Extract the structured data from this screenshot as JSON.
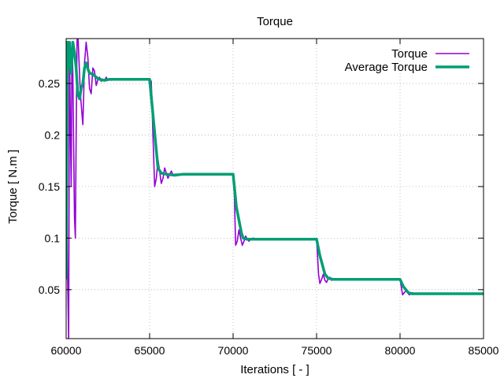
{
  "chart_data": {
    "type": "line",
    "title": "Torque",
    "xlabel": "Iterations [ - ]",
    "ylabel": "Torque [ N.m ]",
    "xlim": [
      60000,
      85000
    ],
    "ylim": [
      0.0025,
      0.2935
    ],
    "xticks": [
      60000,
      65000,
      70000,
      75000,
      80000,
      85000
    ],
    "yticks": [
      0.05,
      0.1,
      0.15,
      0.2,
      0.25
    ],
    "ytick_labels": [
      "0.05",
      "0.1",
      "0.15",
      "0.2",
      "0.25"
    ],
    "grid": true,
    "legend_position": "top-right",
    "series": [
      {
        "name": "Torque",
        "color": "#9400d3",
        "x": [
          60000,
          60080,
          60150,
          60200,
          60260,
          60300,
          60350,
          60400,
          60450,
          60500,
          60550,
          60600,
          60650,
          60700,
          60750,
          60800,
          60850,
          60900,
          60950,
          61000,
          61050,
          61100,
          61150,
          61200,
          61300,
          61400,
          61500,
          61600,
          61700,
          61800,
          61900,
          62000,
          62100,
          62200,
          62300,
          62400,
          62500,
          62600,
          62700,
          62800,
          63000,
          63500,
          64000,
          64500,
          65000,
          65100,
          65200,
          65300,
          65400,
          65500,
          65600,
          65700,
          65800,
          65900,
          66000,
          66100,
          66200,
          66300,
          66400,
          66500,
          66700,
          67000,
          68000,
          69000,
          70000,
          70080,
          70150,
          70250,
          70350,
          70450,
          70550,
          70650,
          70750,
          70850,
          70950,
          71050,
          71200,
          71400,
          72000,
          73000,
          74000,
          75000,
          75050,
          75120,
          75200,
          75300,
          75400,
          75500,
          75600,
          75700,
          75800,
          75900,
          76000,
          76200,
          77000,
          78000,
          79000,
          80000,
          80050,
          80150,
          80250,
          80350,
          80450,
          80550,
          80650,
          80750,
          80850,
          81000,
          82000,
          83000,
          84000,
          85000
        ],
        "y": [
          0.29,
          0.07,
          0.0,
          0.29,
          0.2,
          0.15,
          0.29,
          0.26,
          0.19,
          0.12,
          0.1,
          0.2,
          0.29,
          0.3,
          0.28,
          0.26,
          0.24,
          0.23,
          0.22,
          0.21,
          0.24,
          0.27,
          0.28,
          0.29,
          0.275,
          0.245,
          0.24,
          0.265,
          0.262,
          0.248,
          0.254,
          0.256,
          0.252,
          0.254,
          0.253,
          0.256,
          0.253,
          0.254,
          0.253,
          0.254,
          0.254,
          0.254,
          0.254,
          0.254,
          0.254,
          0.252,
          0.2,
          0.15,
          0.158,
          0.176,
          0.165,
          0.153,
          0.158,
          0.168,
          0.163,
          0.158,
          0.162,
          0.165,
          0.161,
          0.162,
          0.162,
          0.162,
          0.162,
          0.162,
          0.162,
          0.14,
          0.093,
          0.097,
          0.108,
          0.1,
          0.093,
          0.097,
          0.102,
          0.099,
          0.097,
          0.099,
          0.1,
          0.099,
          0.099,
          0.099,
          0.099,
          0.099,
          0.085,
          0.065,
          0.056,
          0.06,
          0.065,
          0.059,
          0.057,
          0.061,
          0.062,
          0.059,
          0.06,
          0.06,
          0.06,
          0.06,
          0.06,
          0.06,
          0.055,
          0.045,
          0.047,
          0.049,
          0.047,
          0.045,
          0.046,
          0.047,
          0.046,
          0.046,
          0.046,
          0.046,
          0.046,
          0.046
        ],
        "width": 1.6
      },
      {
        "name": "Average Torque",
        "color": "#009e73",
        "x": [
          60000,
          60080,
          60150,
          60200,
          60300,
          60400,
          60500,
          60600,
          60700,
          60800,
          60900,
          61000,
          61100,
          61200,
          61300,
          61400,
          61600,
          61800,
          62000,
          62300,
          62600,
          63000,
          64000,
          65000,
          65200,
          65400,
          65500,
          65700,
          66000,
          66500,
          67000,
          68000,
          69000,
          70000,
          70200,
          70500,
          70600,
          70800,
          71000,
          72000,
          73000,
          74000,
          75000,
          75200,
          75500,
          75700,
          76000,
          77000,
          78000,
          79000,
          80000,
          80200,
          80500,
          80700,
          81000,
          82000,
          83000,
          84000,
          85000
        ],
        "y": [
          0.06,
          0.29,
          0.265,
          0.29,
          0.26,
          0.29,
          0.28,
          0.265,
          0.24,
          0.235,
          0.245,
          0.25,
          0.265,
          0.27,
          0.264,
          0.26,
          0.259,
          0.256,
          0.254,
          0.253,
          0.254,
          0.254,
          0.254,
          0.254,
          0.22,
          0.185,
          0.168,
          0.163,
          0.162,
          0.161,
          0.162,
          0.162,
          0.162,
          0.162,
          0.13,
          0.105,
          0.1,
          0.099,
          0.099,
          0.099,
          0.099,
          0.099,
          0.099,
          0.083,
          0.065,
          0.061,
          0.06,
          0.06,
          0.06,
          0.06,
          0.06,
          0.053,
          0.047,
          0.046,
          0.046,
          0.046,
          0.046,
          0.046,
          0.046
        ],
        "width": 3.5
      }
    ]
  }
}
